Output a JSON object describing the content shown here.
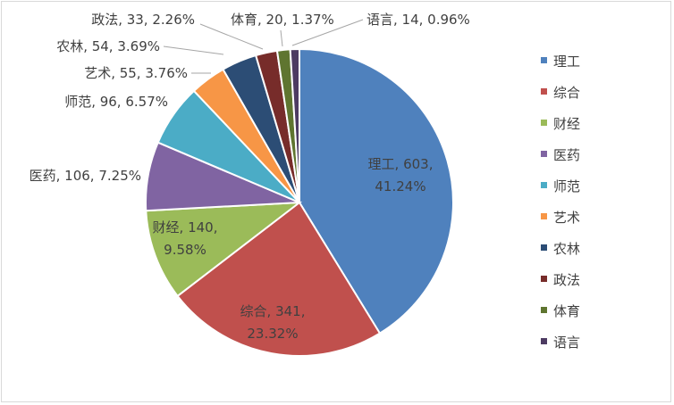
{
  "chart_data": {
    "type": "pie",
    "title": "",
    "categories": [
      "理工",
      "综合",
      "财经",
      "医药",
      "师范",
      "艺术",
      "农林",
      "政法",
      "体育",
      "语言"
    ],
    "values": [
      603,
      341,
      140,
      106,
      96,
      55,
      54,
      33,
      20,
      14
    ],
    "percents": [
      "41.24%",
      "23.32%",
      "9.58%",
      "7.25%",
      "6.57%",
      "3.76%",
      "3.69%",
      "2.26%",
      "1.37%",
      "0.96%"
    ],
    "colors": [
      "#4f81bd",
      "#c0504d",
      "#9bbb59",
      "#8064a2",
      "#4bacc6",
      "#f79646",
      "#2c4d75",
      "#772c2a",
      "#5f7530",
      "#4d3b62"
    ],
    "data_labels": [
      [
        "理工, 603,",
        "41.24%"
      ],
      [
        "综合, 341,",
        "23.32%"
      ],
      [
        "财经, 140,",
        "9.58%"
      ],
      [
        "医药, 106, 7.25%"
      ],
      [
        "师范, 96, 6.57%"
      ],
      [
        "艺术, 55, 3.76%"
      ],
      [
        "农林, 54, 3.69%"
      ],
      [
        "政法, 33, 2.26%"
      ],
      [
        "体育, 20, 1.37%"
      ],
      [
        "语言, 14, 0.96%"
      ]
    ],
    "legend_position": "right"
  }
}
